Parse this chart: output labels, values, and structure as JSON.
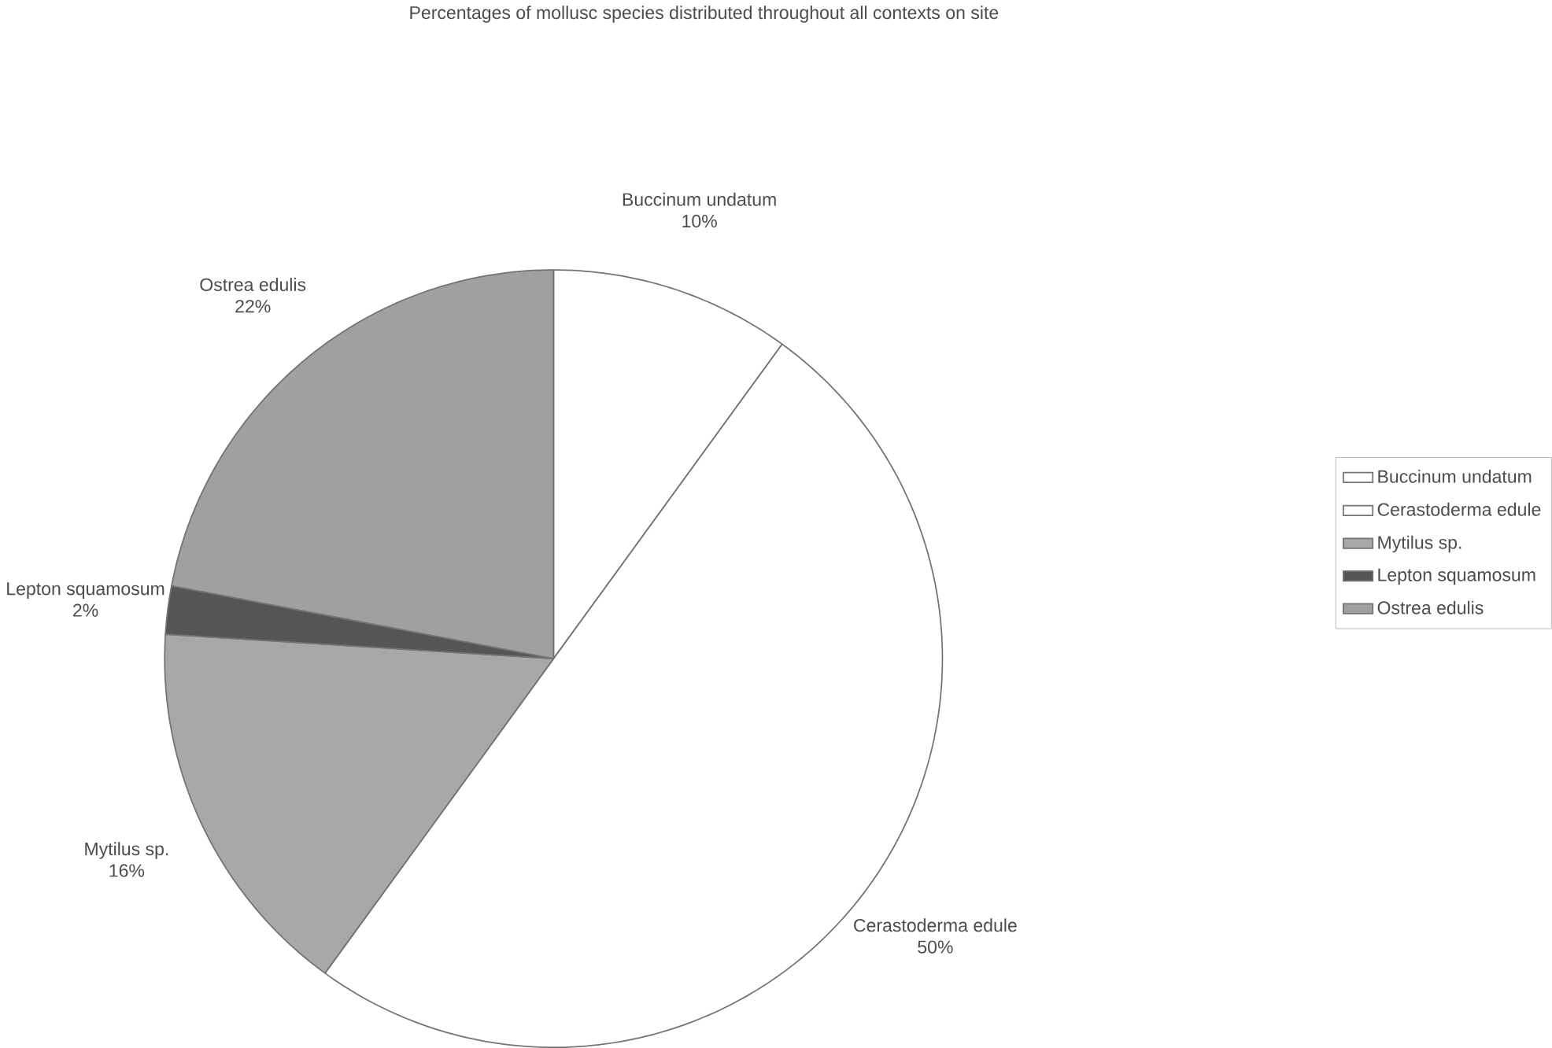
{
  "chart_data": {
    "type": "pie",
    "title": "Percentages of mollusc species distributed throughout all contexts on site",
    "categories": [
      "Buccinum undatum",
      "Cerastoderma edule",
      "Mytilus sp.",
      "Lepton squamosum",
      "Ostrea edulis"
    ],
    "values": [
      10,
      50,
      16,
      2,
      22
    ],
    "value_labels": [
      "10%",
      "50%",
      "16%",
      "2%",
      "22%"
    ],
    "colors": [
      "#ffffff",
      "#ffffff",
      "#a8a8a8",
      "#555555",
      "#a0a0a0"
    ],
    "legend": "right"
  }
}
